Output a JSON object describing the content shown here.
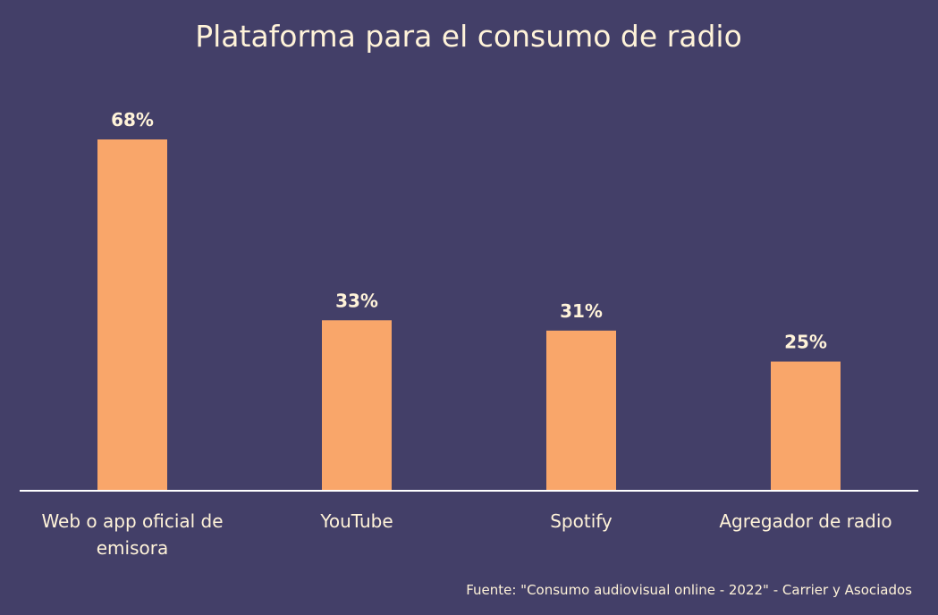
{
  "colors": {
    "background": "#433f68",
    "bar": "#f9a66a",
    "text": "#fff3d9",
    "axis": "#ffffff"
  },
  "chart_data": {
    "type": "bar",
    "title": "Plataforma para el consumo de radio",
    "categories": [
      [
        "Web o app oficial de",
        "emisora"
      ],
      [
        "YouTube"
      ],
      [
        "Spotify"
      ],
      [
        "Agregador de radio"
      ]
    ],
    "values": [
      68,
      33,
      31,
      25
    ],
    "value_labels": [
      "68%",
      "33%",
      "31%",
      "25%"
    ],
    "unit": "%",
    "ylim": [
      0,
      68
    ],
    "grid": false,
    "legend": "none"
  },
  "source": "Fuente: \"Consumo audiovisual online - 2022\" - Carrier y Asociados"
}
